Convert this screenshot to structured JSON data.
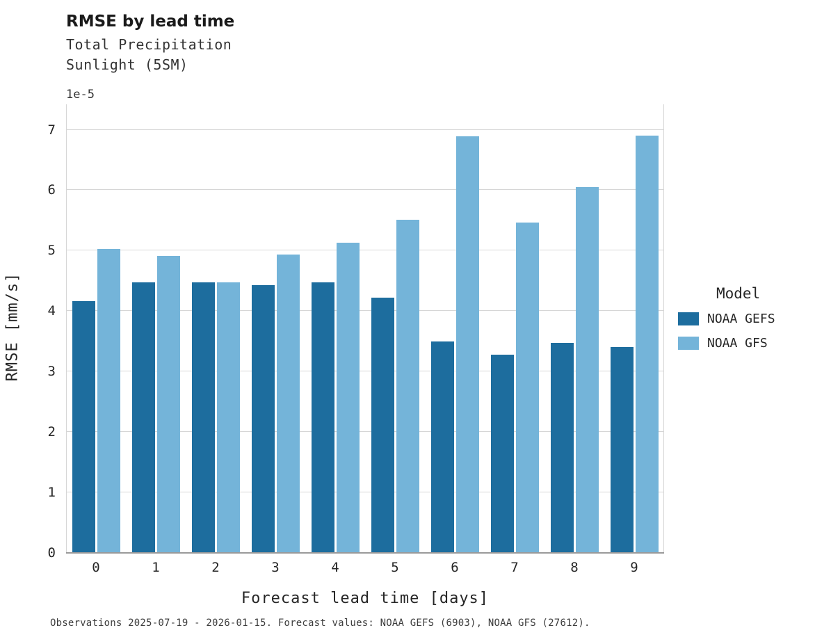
{
  "header": {
    "title": "RMSE by lead time",
    "subtitle_line1": "Total Precipitation",
    "subtitle_line2": "Sunlight (5SM)"
  },
  "axes": {
    "offset_text": "1e-5",
    "xlabel": "Forecast lead time [days]",
    "ylabel": "RMSE [mm/s]"
  },
  "legend": {
    "title": "Model",
    "entries": [
      {
        "label": "NOAA GEFS",
        "color": "#1d6d9e"
      },
      {
        "label": "NOAA GFS",
        "color": "#74b4d9"
      }
    ]
  },
  "footer": {
    "caption": "Observations 2025-07-19 - 2026-01-15. Forecast values: NOAA GEFS (6903), NOAA GFS (27612)."
  },
  "chart_data": {
    "type": "bar",
    "title": "RMSE by lead time",
    "subtitle": "Total Precipitation Sunlight (5SM)",
    "categories": [
      "0",
      "1",
      "2",
      "3",
      "4",
      "5",
      "6",
      "7",
      "8",
      "9"
    ],
    "series": [
      {
        "name": "NOAA GEFS",
        "color": "#1d6d9e",
        "values": [
          4.17,
          4.47,
          4.47,
          4.43,
          4.48,
          4.22,
          3.5,
          3.28,
          3.48,
          3.41
        ]
      },
      {
        "name": "NOAA GFS",
        "color": "#74b4d9",
        "values": [
          5.03,
          4.91,
          4.47,
          4.93,
          5.13,
          5.51,
          6.89,
          5.46,
          6.05,
          6.9
        ]
      }
    ],
    "value_multiplier": "1e-5",
    "xlabel": "Forecast lead time [days]",
    "ylabel": "RMSE [mm/s]",
    "ylim": [
      0,
      7
    ],
    "yticks": [
      0,
      1,
      2,
      3,
      4,
      5,
      6,
      7
    ],
    "grid": true,
    "legend_position": "right"
  }
}
